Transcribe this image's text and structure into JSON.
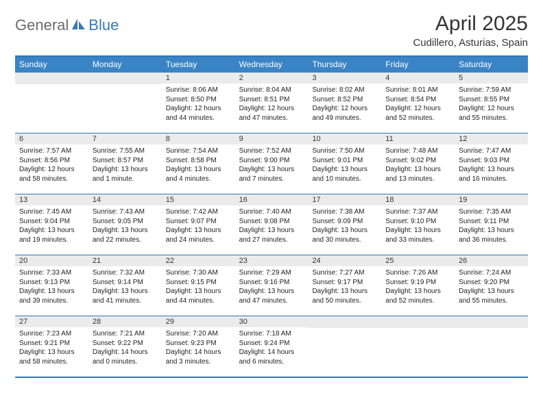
{
  "logo": {
    "part1": "General",
    "part2": "Blue"
  },
  "title": "April 2025",
  "subtitle": "Cudillero, Asturias, Spain",
  "colors": {
    "header_bg": "#3a84c6",
    "header_text": "#ffffff",
    "border": "#2d76b8",
    "daynum_bg": "#ebebeb",
    "logo_gray": "#6b6b6b",
    "logo_blue": "#3a78b5",
    "text": "#222222",
    "background": "#ffffff"
  },
  "fonts": {
    "title_size": 30,
    "subtitle_size": 15,
    "dow_size": 12,
    "daynum_size": 11,
    "body_size": 10
  },
  "dow": [
    "Sunday",
    "Monday",
    "Tuesday",
    "Wednesday",
    "Thursday",
    "Friday",
    "Saturday"
  ],
  "weeks": [
    [
      null,
      null,
      {
        "n": "1",
        "sr": "8:06 AM",
        "ss": "8:50 PM",
        "dl": "12 hours and 44 minutes."
      },
      {
        "n": "2",
        "sr": "8:04 AM",
        "ss": "8:51 PM",
        "dl": "12 hours and 47 minutes."
      },
      {
        "n": "3",
        "sr": "8:02 AM",
        "ss": "8:52 PM",
        "dl": "12 hours and 49 minutes."
      },
      {
        "n": "4",
        "sr": "8:01 AM",
        "ss": "8:54 PM",
        "dl": "12 hours and 52 minutes."
      },
      {
        "n": "5",
        "sr": "7:59 AM",
        "ss": "8:55 PM",
        "dl": "12 hours and 55 minutes."
      }
    ],
    [
      {
        "n": "6",
        "sr": "7:57 AM",
        "ss": "8:56 PM",
        "dl": "12 hours and 58 minutes."
      },
      {
        "n": "7",
        "sr": "7:55 AM",
        "ss": "8:57 PM",
        "dl": "13 hours and 1 minute."
      },
      {
        "n": "8",
        "sr": "7:54 AM",
        "ss": "8:58 PM",
        "dl": "13 hours and 4 minutes."
      },
      {
        "n": "9",
        "sr": "7:52 AM",
        "ss": "9:00 PM",
        "dl": "13 hours and 7 minutes."
      },
      {
        "n": "10",
        "sr": "7:50 AM",
        "ss": "9:01 PM",
        "dl": "13 hours and 10 minutes."
      },
      {
        "n": "11",
        "sr": "7:48 AM",
        "ss": "9:02 PM",
        "dl": "13 hours and 13 minutes."
      },
      {
        "n": "12",
        "sr": "7:47 AM",
        "ss": "9:03 PM",
        "dl": "13 hours and 16 minutes."
      }
    ],
    [
      {
        "n": "13",
        "sr": "7:45 AM",
        "ss": "9:04 PM",
        "dl": "13 hours and 19 minutes."
      },
      {
        "n": "14",
        "sr": "7:43 AM",
        "ss": "9:05 PM",
        "dl": "13 hours and 22 minutes."
      },
      {
        "n": "15",
        "sr": "7:42 AM",
        "ss": "9:07 PM",
        "dl": "13 hours and 24 minutes."
      },
      {
        "n": "16",
        "sr": "7:40 AM",
        "ss": "9:08 PM",
        "dl": "13 hours and 27 minutes."
      },
      {
        "n": "17",
        "sr": "7:38 AM",
        "ss": "9:09 PM",
        "dl": "13 hours and 30 minutes."
      },
      {
        "n": "18",
        "sr": "7:37 AM",
        "ss": "9:10 PM",
        "dl": "13 hours and 33 minutes."
      },
      {
        "n": "19",
        "sr": "7:35 AM",
        "ss": "9:11 PM",
        "dl": "13 hours and 36 minutes."
      }
    ],
    [
      {
        "n": "20",
        "sr": "7:33 AM",
        "ss": "9:13 PM",
        "dl": "13 hours and 39 minutes."
      },
      {
        "n": "21",
        "sr": "7:32 AM",
        "ss": "9:14 PM",
        "dl": "13 hours and 41 minutes."
      },
      {
        "n": "22",
        "sr": "7:30 AM",
        "ss": "9:15 PM",
        "dl": "13 hours and 44 minutes."
      },
      {
        "n": "23",
        "sr": "7:29 AM",
        "ss": "9:16 PM",
        "dl": "13 hours and 47 minutes."
      },
      {
        "n": "24",
        "sr": "7:27 AM",
        "ss": "9:17 PM",
        "dl": "13 hours and 50 minutes."
      },
      {
        "n": "25",
        "sr": "7:26 AM",
        "ss": "9:19 PM",
        "dl": "13 hours and 52 minutes."
      },
      {
        "n": "26",
        "sr": "7:24 AM",
        "ss": "9:20 PM",
        "dl": "13 hours and 55 minutes."
      }
    ],
    [
      {
        "n": "27",
        "sr": "7:23 AM",
        "ss": "9:21 PM",
        "dl": "13 hours and 58 minutes."
      },
      {
        "n": "28",
        "sr": "7:21 AM",
        "ss": "9:22 PM",
        "dl": "14 hours and 0 minutes."
      },
      {
        "n": "29",
        "sr": "7:20 AM",
        "ss": "9:23 PM",
        "dl": "14 hours and 3 minutes."
      },
      {
        "n": "30",
        "sr": "7:18 AM",
        "ss": "9:24 PM",
        "dl": "14 hours and 6 minutes."
      },
      null,
      null,
      null
    ]
  ],
  "labels": {
    "sunrise": "Sunrise:",
    "sunset": "Sunset:",
    "daylight": "Daylight:"
  }
}
